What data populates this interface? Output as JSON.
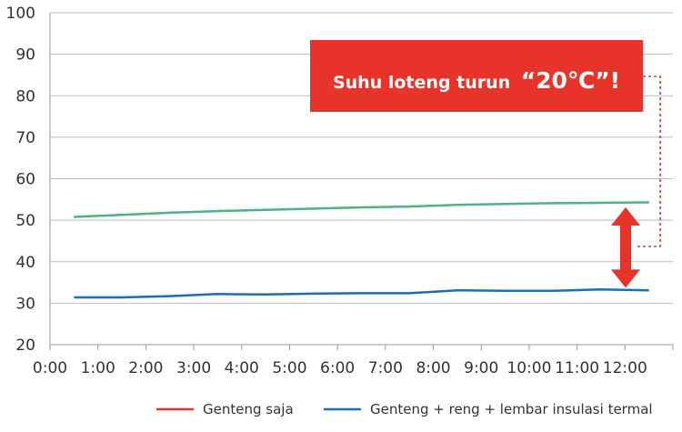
{
  "chart_data": {
    "type": "line",
    "title": "",
    "xlabel": "",
    "ylabel": "",
    "ylim": [
      20,
      100
    ],
    "yticks": [
      20,
      30,
      40,
      50,
      60,
      70,
      80,
      90,
      100
    ],
    "xticks": [
      "0:00",
      "1:00",
      "2:00",
      "3:00",
      "4:00",
      "5:00",
      "6:00",
      "7:00",
      "8:00",
      "9:00",
      "10:00",
      "11:00",
      "12:00"
    ],
    "x": [
      0.5,
      1.5,
      2.5,
      3.5,
      4.5,
      5.5,
      6.5,
      7.5,
      8.5,
      9.5,
      10.5,
      11.5,
      12.5
    ],
    "grid": "horizontal",
    "legend_position": "bottom",
    "series": [
      {
        "name": "Genteng saja",
        "color": "#e8332a",
        "line_color": "#4db380",
        "values": [
          50.8,
          51.3,
          51.8,
          52.2,
          52.5,
          52.8,
          53.1,
          53.3,
          53.7,
          53.9,
          54.1,
          54.2,
          54.3
        ]
      },
      {
        "name": "Genteng + reng + lembar insulasi termal",
        "color": "#1a6fb5",
        "line_color": "#1a6fb5",
        "values": [
          31.4,
          31.4,
          31.7,
          32.2,
          32.1,
          32.3,
          32.4,
          32.4,
          33.1,
          33.0,
          33.0,
          33.3,
          33.1
        ]
      }
    ],
    "annotation": {
      "text_before": "Suhu loteng turun",
      "highlight": "“20℃”!",
      "box_color": "#e8332a",
      "arrow_color": "#e8332a"
    }
  }
}
